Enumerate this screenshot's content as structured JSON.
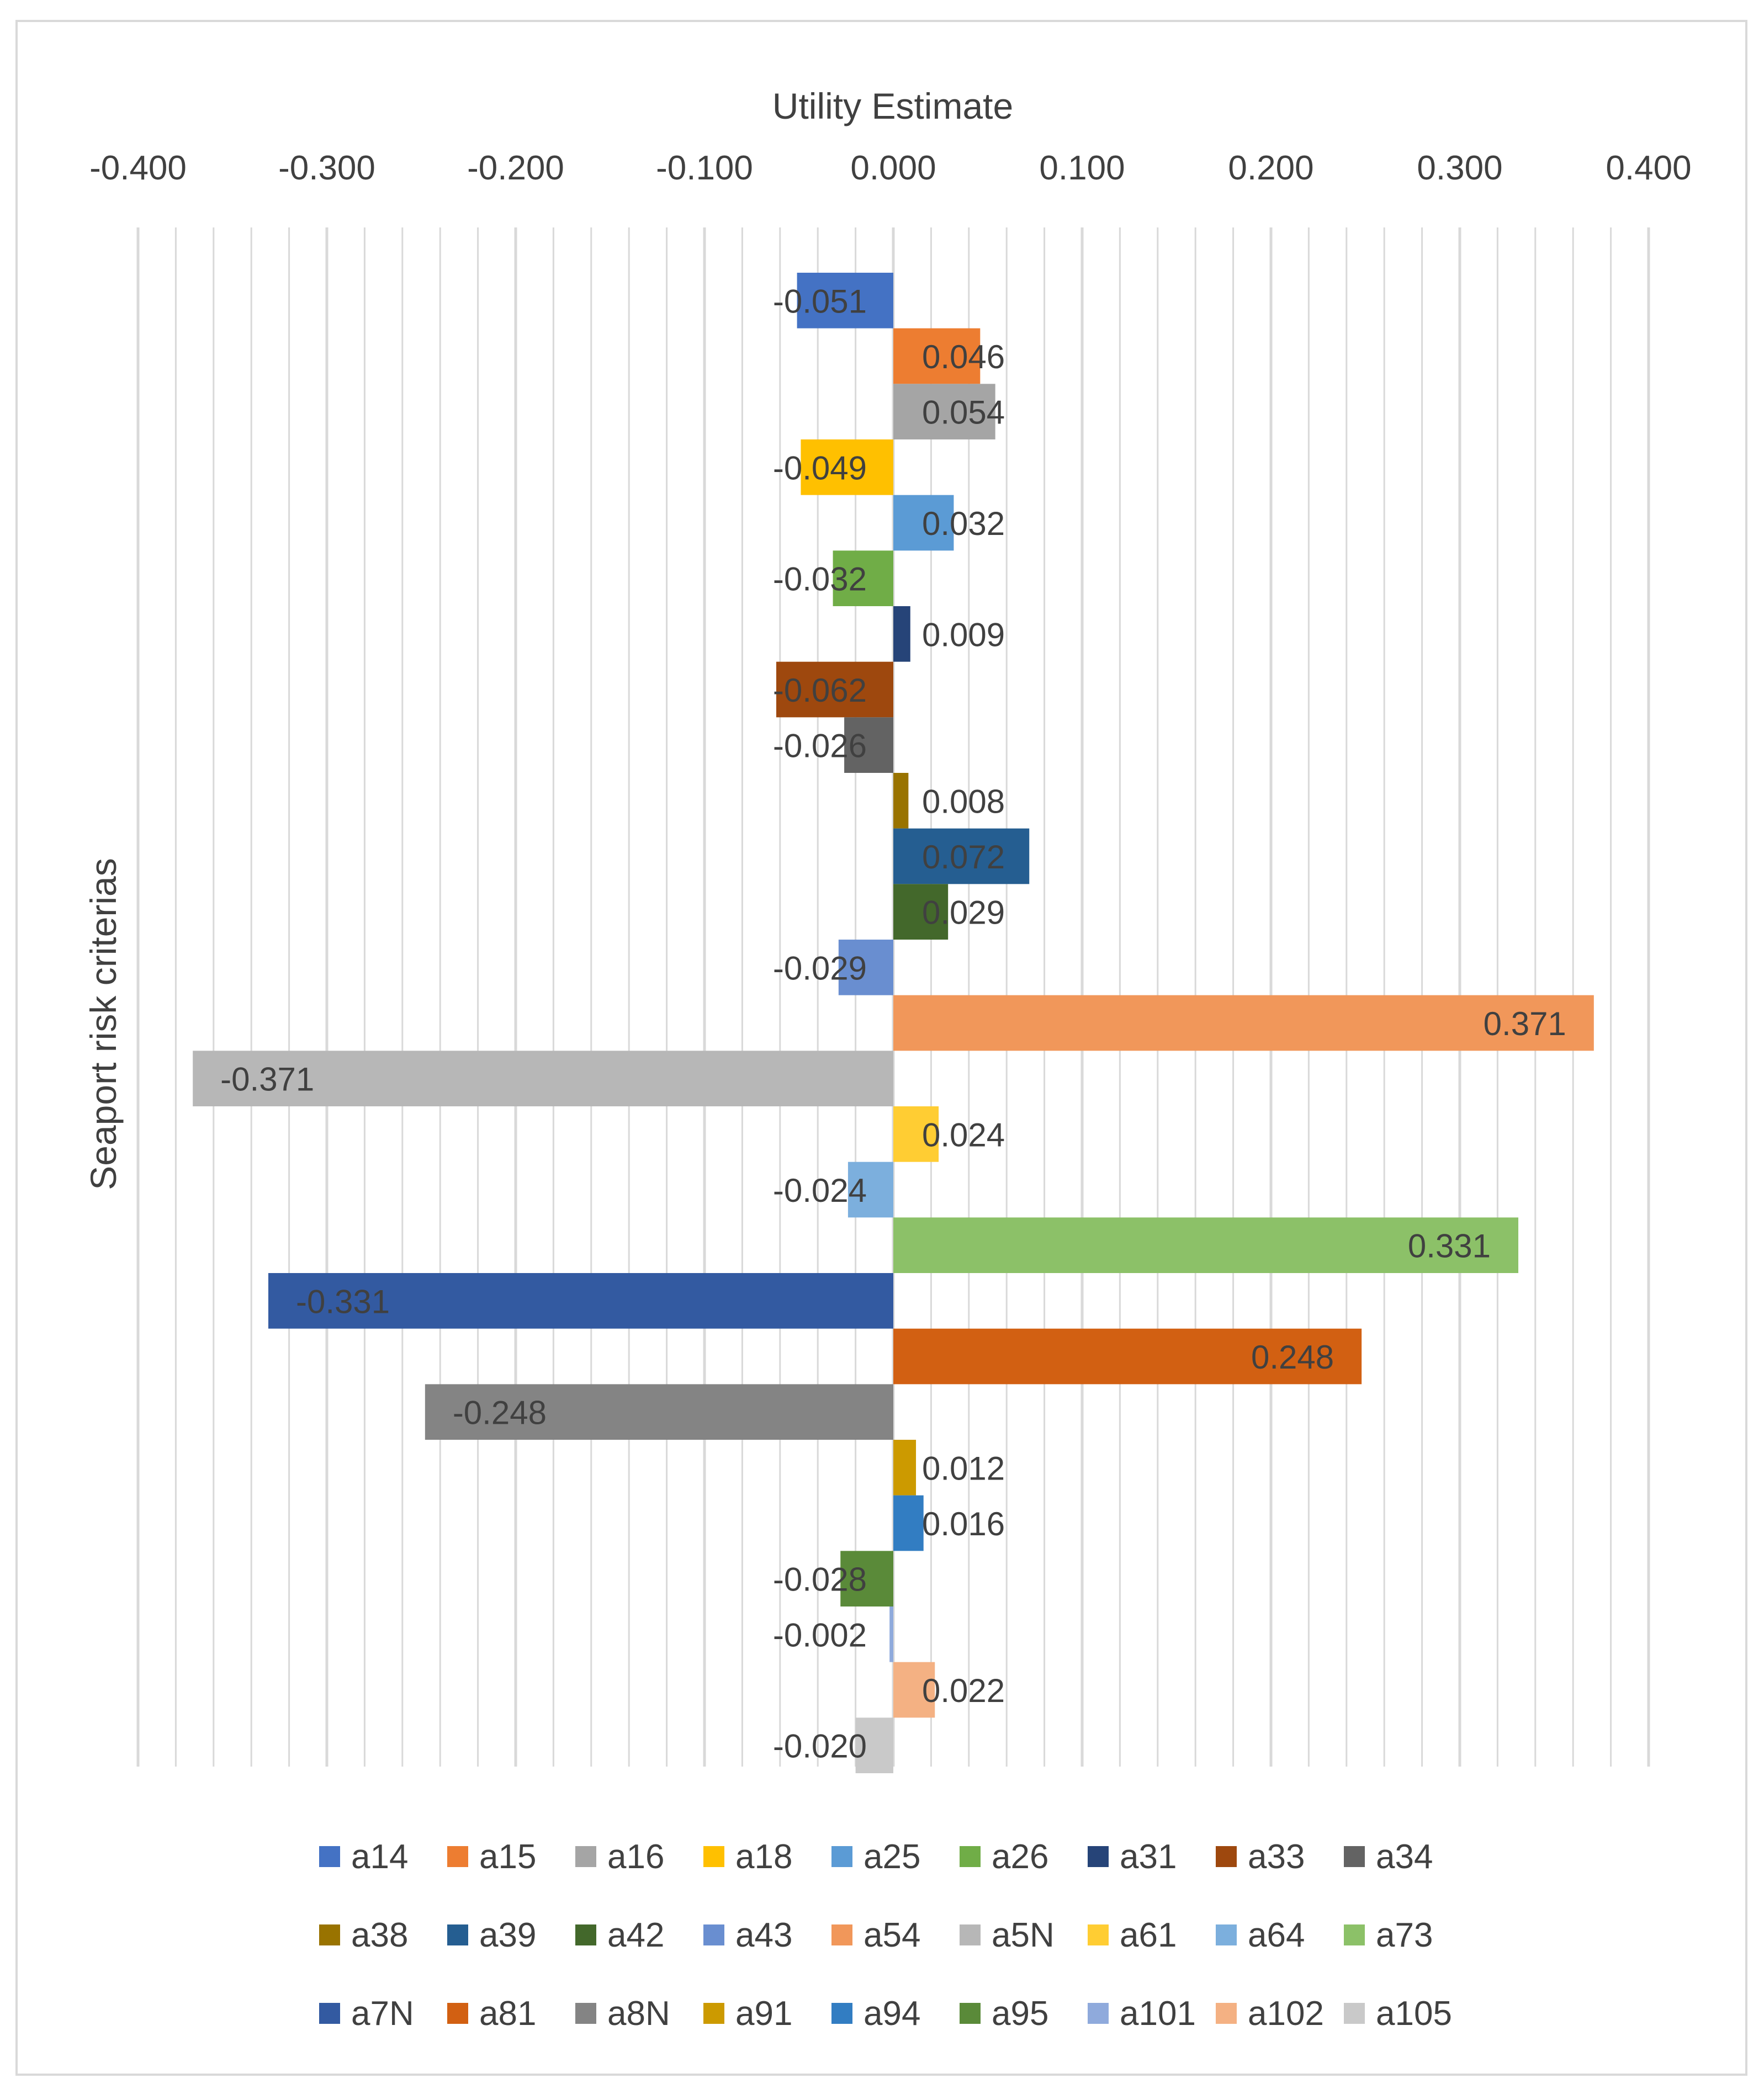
{
  "chart_data": {
    "type": "bar",
    "orientation": "horizontal",
    "xlabel": "Utility Estimate",
    "ylabel": "Seaport risk criterias",
    "xlim": [
      -0.4,
      0.4
    ],
    "x_ticks": [
      "-0.400",
      "-0.300",
      "-0.200",
      "-0.100",
      "0.000",
      "0.100",
      "0.200",
      "0.300",
      "0.400"
    ],
    "grid": true,
    "legend_position": "bottom",
    "series": [
      {
        "name": "a14",
        "value": -0.051,
        "label": "-0.051",
        "color": "#4472C4"
      },
      {
        "name": "a15",
        "value": 0.046,
        "label": "0.046",
        "color": "#ED7D31"
      },
      {
        "name": "a16",
        "value": 0.054,
        "label": "0.054",
        "color": "#A5A5A5"
      },
      {
        "name": "a18",
        "value": -0.049,
        "label": "-0.049",
        "color": "#FFC000"
      },
      {
        "name": "a25",
        "value": 0.032,
        "label": "0.032",
        "color": "#5B9BD5"
      },
      {
        "name": "a26",
        "value": -0.032,
        "label": "-0.032",
        "color": "#70AD47"
      },
      {
        "name": "a31",
        "value": 0.009,
        "label": "0.009",
        "color": "#264478"
      },
      {
        "name": "a33",
        "value": -0.062,
        "label": "-0.062",
        "color": "#9E480E"
      },
      {
        "name": "a34",
        "value": -0.026,
        "label": "-0.026",
        "color": "#636363"
      },
      {
        "name": "a38",
        "value": 0.008,
        "label": "0.008",
        "color": "#997300"
      },
      {
        "name": "a39",
        "value": 0.072,
        "label": "0.072",
        "color": "#255E91"
      },
      {
        "name": "a42",
        "value": 0.029,
        "label": "0.029",
        "color": "#43682B"
      },
      {
        "name": "a43",
        "value": -0.029,
        "label": "-0.029",
        "color": "#698ED0"
      },
      {
        "name": "a54",
        "value": 0.371,
        "label": "0.371",
        "color": "#F1975A"
      },
      {
        "name": "a5N",
        "value": -0.371,
        "label": "-0.371",
        "color": "#B7B7B7"
      },
      {
        "name": "a61",
        "value": 0.024,
        "label": "0.024",
        "color": "#FFCD33"
      },
      {
        "name": "a64",
        "value": -0.024,
        "label": "-0.024",
        "color": "#7CAFDD"
      },
      {
        "name": "a73",
        "value": 0.331,
        "label": "0.331",
        "color": "#8CC168"
      },
      {
        "name": "a7N",
        "value": -0.331,
        "label": "-0.331",
        "color": "#335AA1"
      },
      {
        "name": "a81",
        "value": 0.248,
        "label": "0.248",
        "color": "#D26012"
      },
      {
        "name": "a8N",
        "value": -0.248,
        "label": "-0.248",
        "color": "#848484"
      },
      {
        "name": "a91",
        "value": 0.012,
        "label": "0.012",
        "color": "#CC9A00"
      },
      {
        "name": "a94",
        "value": 0.016,
        "label": "0.016",
        "color": "#327DC2"
      },
      {
        "name": "a95",
        "value": -0.028,
        "label": "-0.028",
        "color": "#5A8A39"
      },
      {
        "name": "a101",
        "value": -0.002,
        "label": "-0.002",
        "color": "#8FAADC"
      },
      {
        "name": "a102",
        "value": 0.022,
        "label": "0.022",
        "color": "#F4B183"
      },
      {
        "name": "a105",
        "value": -0.02,
        "label": "-0.020",
        "color": "#C9C9C9"
      }
    ]
  },
  "colors": {
    "grid": "#D9D9D9",
    "text": "#404040",
    "border": "#D9D9D9",
    "background": "#FFFFFF"
  }
}
